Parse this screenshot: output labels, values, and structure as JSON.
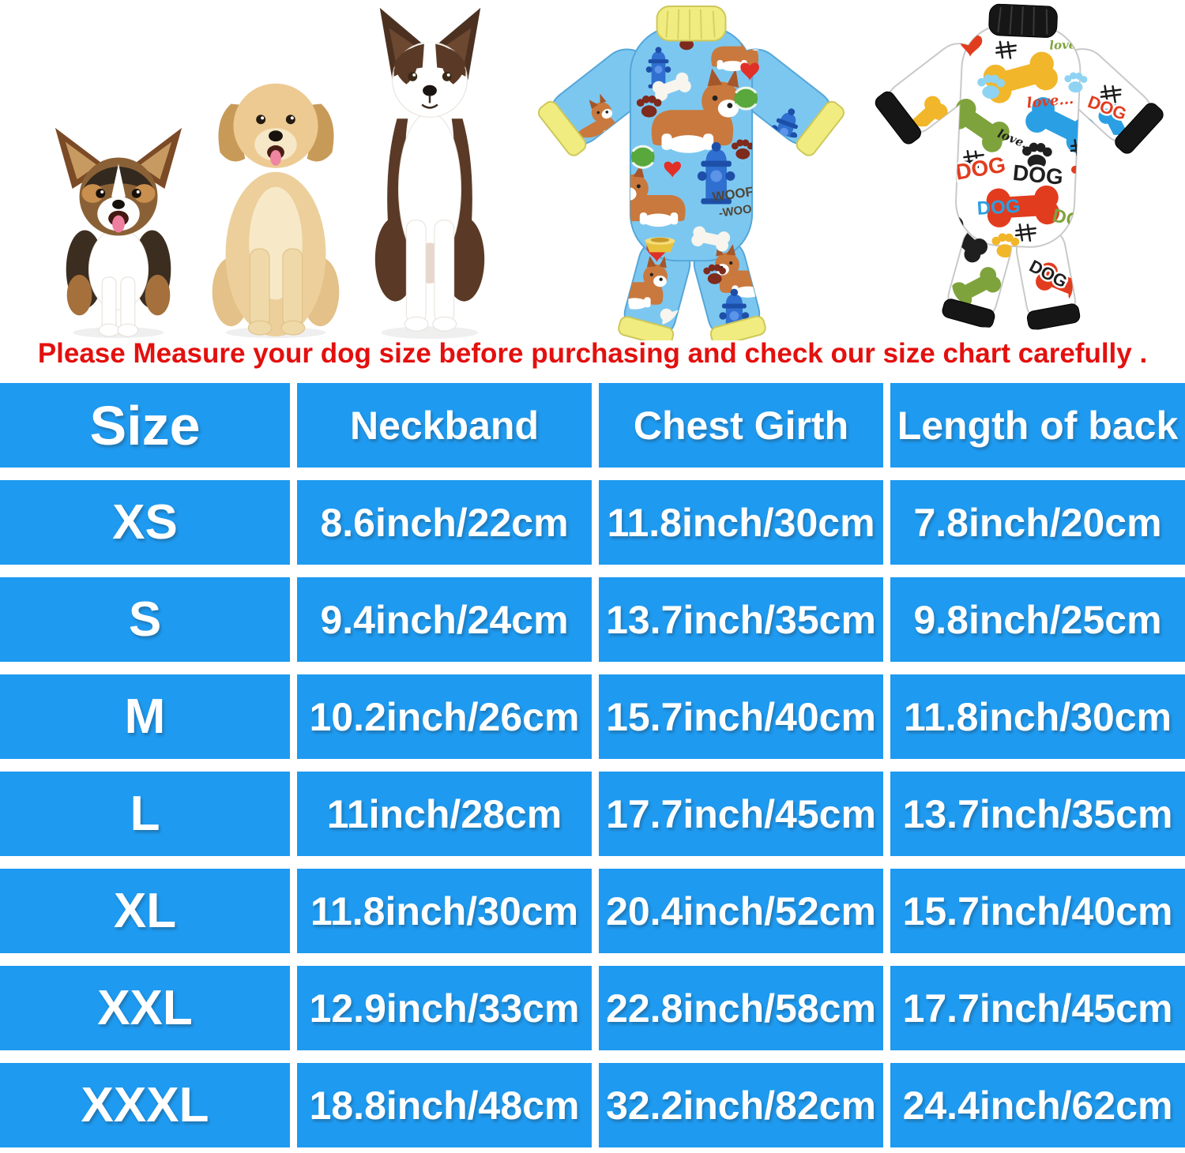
{
  "warning": {
    "text": "Please Measure your dog size before purchasing and check our size chart carefully ."
  },
  "hero": {
    "dog_images": [
      {
        "icon": "corgi-puppy-image"
      },
      {
        "icon": "golden-retriever-puppy-image"
      },
      {
        "icon": "border-collie-puppy-image"
      }
    ],
    "pajamas": [
      {
        "icon": "blue-corgi-print-pajama-image",
        "base_color": "#7cc7f0",
        "trim_color": "#f1ec7f",
        "words": {
          "woof": "WOOF",
          "woo": "-WOO"
        }
      },
      {
        "icon": "white-bone-print-pajama-image",
        "base_color": "#ffffff",
        "trim_color": "#161616",
        "words": {
          "dog": "DOG",
          "love": "love..."
        }
      }
    ]
  },
  "colors": {
    "table_blue": "#1e9af0",
    "warning_red": "#e3100e"
  },
  "chart_data": {
    "type": "table",
    "columns": [
      "Size",
      "Neckband",
      "Chest Girth",
      "Length of back"
    ],
    "rows": [
      [
        "XS",
        "8.6inch/22cm",
        "11.8inch/30cm",
        "7.8inch/20cm"
      ],
      [
        "S",
        "9.4inch/24cm",
        "13.7inch/35cm",
        "9.8inch/25cm"
      ],
      [
        "M",
        "10.2inch/26cm",
        "15.7inch/40cm",
        "11.8inch/30cm"
      ],
      [
        "L",
        "11inch/28cm",
        "17.7inch/45cm",
        "13.7inch/35cm"
      ],
      [
        "XL",
        "11.8inch/30cm",
        "20.4inch/52cm",
        "15.7inch/40cm"
      ],
      [
        "XXL",
        "12.9inch/33cm",
        "22.8inch/58cm",
        "17.7inch/45cm"
      ],
      [
        "XXXL",
        "18.8inch/48cm",
        "32.2inch/82cm",
        "24.4inch/62cm"
      ]
    ]
  }
}
